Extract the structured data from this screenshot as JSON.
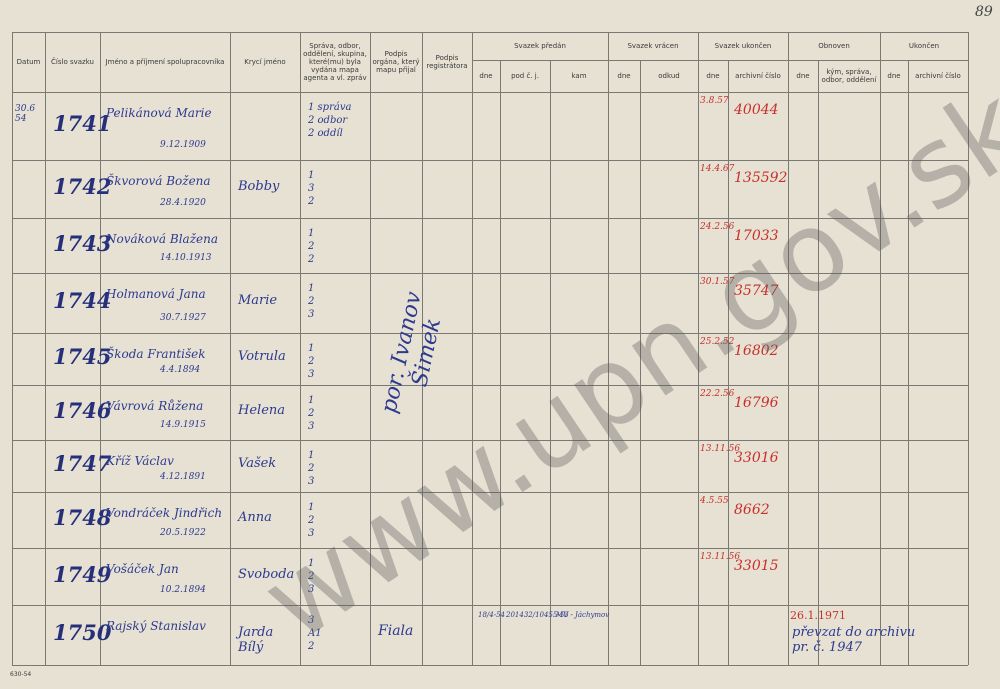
{
  "page_number": "89",
  "watermark": "www.upn.gov.sk",
  "footer": "630-54",
  "header": {
    "columns": [
      "Datum",
      "Číslo svazku",
      "Jméno a příjmení spolupracovníka",
      "Krycí jméno",
      "Správa, odbor, oddělení, skupina, které(mu) byla vydána mapa agenta a vl. zpráv",
      "Podpis orgána, který mapu přijal",
      "Podpis registrátora"
    ],
    "groups": [
      {
        "title": "Svazek předán",
        "sub": [
          "dne",
          "pod č. j.",
          "kam"
        ]
      },
      {
        "title": "Svazek vrácen",
        "sub": [
          "dne",
          "odkud"
        ]
      },
      {
        "title": "Svazek ukončen",
        "sub": [
          "dne",
          "archivní číslo"
        ]
      },
      {
        "title": "Obnoven",
        "sub": [
          "dne",
          "kým, správa, odbor, oddělení"
        ]
      },
      {
        "title": "Ukončen",
        "sub": [
          "dne",
          "archivní číslo"
        ]
      }
    ]
  },
  "rows": [
    {
      "datum": "30.6 54",
      "number": "1741",
      "name": "Pelikánová Marie",
      "born": "9.12.1909",
      "department": [
        "1 správa",
        "2 odbor",
        "2 oddíl"
      ],
      "closed_date": "3.8.57",
      "archive_no": "40044"
    },
    {
      "number": "1742",
      "name": "Škvorová Božena",
      "born": "28.4.1920",
      "cover": "Bobby",
      "department": [
        "1",
        "3",
        "2"
      ],
      "closed_date": "14.4.67",
      "archive_no": "135592"
    },
    {
      "number": "1743",
      "name": "Nováková Blažena",
      "born": "14.10.1913",
      "department": [
        "1",
        "2",
        "2"
      ],
      "closed_date": "24.2.56",
      "archive_no": "17033"
    },
    {
      "number": "1744",
      "name": "Holmanová Jana",
      "born": "30.7.1927",
      "cover": "Marie",
      "department": [
        "1",
        "2",
        "3"
      ],
      "closed_date": "30.1.57",
      "archive_no": "35747"
    },
    {
      "number": "1745",
      "name": "Škoda František",
      "born": "4.4.1894",
      "cover": "Votrula",
      "department": [
        "1",
        "2",
        "3"
      ],
      "closed_date": "25.2.52",
      "archive_no": "16802"
    },
    {
      "number": "1746",
      "name": "Vávrová Růžena",
      "born": "14.9.1915",
      "cover": "Helena",
      "department": [
        "1",
        "2",
        "3"
      ],
      "closed_date": "22.2.56",
      "archive_no": "16796"
    },
    {
      "number": "1747",
      "name": "Kříž Václav",
      "born": "4.12.1891",
      "cover": "Vašek",
      "department": [
        "1",
        "2",
        "3"
      ],
      "closed_date": "13.11.56",
      "archive_no": "33016"
    },
    {
      "number": "1748",
      "name": "Vondráček Jindřich",
      "born": "20.5.1922",
      "cover": "Anna",
      "department": [
        "1",
        "2",
        "3"
      ],
      "closed_date": "4.5.55",
      "archive_no": "8662"
    },
    {
      "number": "1749",
      "name": "Vošáček Jan",
      "born": "10.2.1894",
      "cover": "Svoboda",
      "department": [
        "1",
        "2",
        "3"
      ],
      "closed_date": "13.11.56",
      "archive_no": "33015"
    },
    {
      "number": "1750",
      "name": "Rajský Stanislav",
      "cover": "Jarda Bílý",
      "department": [
        "3",
        "A1",
        "2"
      ],
      "signature": "Fiala",
      "handover": {
        "date": "18/4-54",
        "ref": "201432/10455-53",
        "to": "MV - Jáchymov"
      },
      "renewed": {
        "date": "26.1.1971",
        "note": "převzat do archivu pr. č. 1947"
      }
    }
  ],
  "vertical_signatures": [
    "por. Ivanov",
    "Šimek"
  ]
}
